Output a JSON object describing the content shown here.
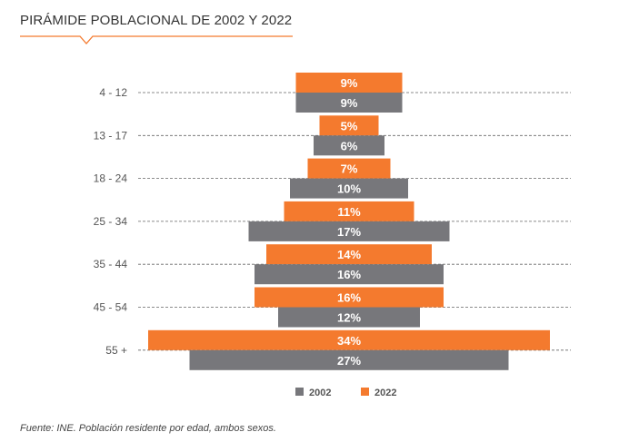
{
  "chart_data": {
    "type": "bar",
    "title": "PIRÁMIDE POBLACIONAL DE 2002 Y 2022",
    "categories": [
      "4 - 12",
      "13 - 17",
      "18 - 24",
      "25 - 34",
      "35 - 44",
      "45 - 54",
      "55 +"
    ],
    "series": [
      {
        "name": "2022",
        "color": "#f47a2e",
        "values": [
          9,
          5,
          7,
          11,
          14,
          16,
          34
        ],
        "labels": [
          "9%",
          "5%",
          "7%",
          "11%",
          "14%",
          "16%",
          "34%"
        ]
      },
      {
        "name": "2002",
        "color": "#77777b",
        "values": [
          9,
          6,
          10,
          17,
          16,
          12,
          27
        ],
        "labels": [
          "9%",
          "6%",
          "10%",
          "17%",
          "16%",
          "12%",
          "27%"
        ]
      }
    ],
    "legend": [
      {
        "name": "2002",
        "color": "#77777b"
      },
      {
        "name": "2022",
        "color": "#f47a2e"
      }
    ],
    "legend_position": "bottom",
    "grid": "dashed horizontal"
  },
  "source": "Fuente: INE. Población residente por edad, ambos sexos."
}
